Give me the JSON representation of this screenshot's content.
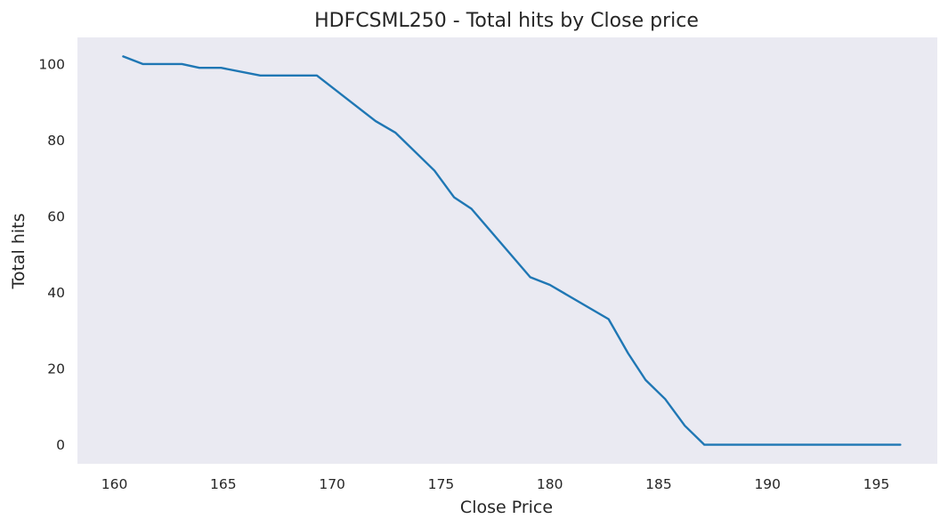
{
  "chart_data": {
    "type": "line",
    "title": "HDFCSML250 - Total hits by Close price",
    "xlabel": "Close Price",
    "ylabel": "Total hits",
    "xlim": [
      158.3,
      197.8
    ],
    "ylim": [
      -5,
      107
    ],
    "xticks": [
      160,
      165,
      170,
      175,
      180,
      185,
      190,
      195
    ],
    "yticks": [
      0,
      20,
      40,
      60,
      80,
      100
    ],
    "grid": false,
    "background": "#eaeaf2",
    "line_color": "#1f77b4",
    "series": [
      {
        "x": [
          160.4,
          161.3,
          163.1,
          163.9,
          164.9,
          166.7,
          169.3,
          172.0,
          172.9,
          174.7,
          175.6,
          176.4,
          179.1,
          180.0,
          182.7,
          183.6,
          184.4,
          185.3,
          186.2,
          187.1,
          189.8,
          196.1
        ],
        "values": [
          102,
          100,
          100,
          99,
          99,
          97,
          97,
          85,
          82,
          72,
          65,
          62,
          44,
          42,
          33,
          24,
          17,
          12,
          5,
          0,
          0,
          0
        ]
      }
    ]
  }
}
